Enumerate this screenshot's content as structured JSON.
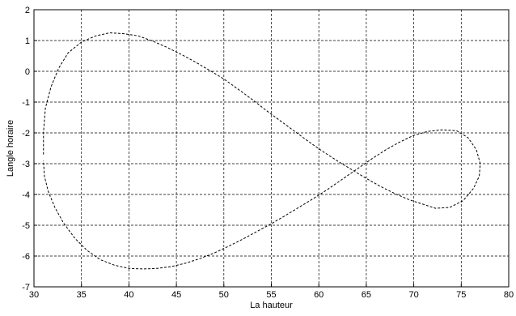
{
  "chart_data": {
    "type": "line",
    "title": "",
    "xlabel": "La hauteur",
    "ylabel": "Langle horaire",
    "xlim": [
      30,
      80
    ],
    "ylim": [
      -7,
      2
    ],
    "xticks": [
      30,
      35,
      40,
      45,
      50,
      55,
      60,
      65,
      70,
      75,
      80
    ],
    "yticks": [
      -7,
      -6,
      -5,
      -4,
      -3,
      -2,
      -1,
      0,
      1,
      2
    ],
    "grid": true,
    "line_style": "dashed",
    "line_color": "#000000",
    "series": [
      {
        "x": [
          31.0,
          31.0,
          31.2,
          31.8,
          32.6,
          33.6,
          35.0,
          36.5,
          38.0,
          39.5,
          41.0,
          42.5,
          44.0,
          45.5,
          47.0,
          48.5,
          50.0,
          51.5,
          53.0,
          54.5,
          56.0,
          57.5,
          59.0,
          60.5,
          62.0,
          63.5,
          65.0,
          66.5,
          68.0,
          69.5,
          71.0,
          72.3,
          73.8,
          75.2,
          76.3,
          76.9,
          77.0,
          76.6,
          75.7,
          74.5,
          73.0,
          71.5,
          70.0,
          68.5,
          67.0,
          65.5,
          64.0,
          62.5,
          61.0,
          59.5,
          58.0,
          56.5,
          55.0,
          53.5,
          52.0,
          50.5,
          49.0,
          47.5,
          46.0,
          44.5,
          43.0,
          41.5,
          40.0,
          38.5,
          37.0,
          35.6,
          34.3,
          33.1,
          32.2,
          31.5,
          31.1,
          31.0
        ],
        "y": [
          -2.7,
          -2.0,
          -1.2,
          -0.5,
          0.1,
          0.6,
          0.95,
          1.15,
          1.25,
          1.22,
          1.15,
          0.98,
          0.78,
          0.55,
          0.3,
          0.03,
          -0.25,
          -0.58,
          -0.92,
          -1.28,
          -1.62,
          -1.96,
          -2.3,
          -2.62,
          -2.92,
          -3.2,
          -3.48,
          -3.74,
          -3.97,
          -4.17,
          -4.32,
          -4.45,
          -4.42,
          -4.2,
          -3.8,
          -3.4,
          -3.0,
          -2.55,
          -2.15,
          -1.93,
          -1.9,
          -1.95,
          -2.08,
          -2.3,
          -2.56,
          -2.86,
          -3.18,
          -3.5,
          -3.82,
          -4.12,
          -4.4,
          -4.68,
          -4.95,
          -5.2,
          -5.45,
          -5.68,
          -5.9,
          -6.08,
          -6.23,
          -6.34,
          -6.4,
          -6.42,
          -6.4,
          -6.3,
          -6.12,
          -5.82,
          -5.42,
          -4.92,
          -4.42,
          -3.9,
          -3.4,
          -2.9
        ]
      }
    ]
  }
}
